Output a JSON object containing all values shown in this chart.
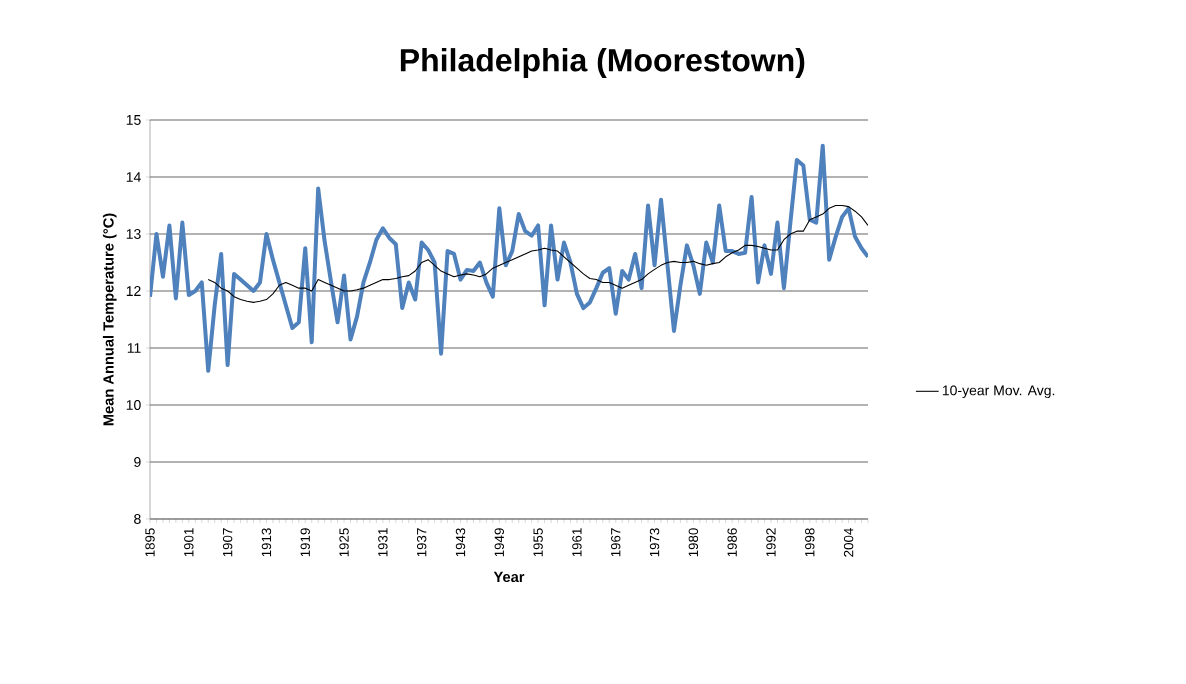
{
  "chart_data": {
    "type": "line",
    "title": "Philadelphia (Moorestown)",
    "xlabel": "Year",
    "ylabel": "Mean Annual Temperature (°C)",
    "categories": [
      "1895",
      null,
      null,
      null,
      null,
      null,
      "1901",
      null,
      null,
      null,
      null,
      null,
      "1907",
      null,
      null,
      null,
      null,
      null,
      "1913",
      null,
      null,
      null,
      null,
      null,
      "1919",
      null,
      null,
      null,
      null,
      null,
      "1925",
      null,
      null,
      null,
      null,
      null,
      "1931",
      null,
      null,
      null,
      null,
      null,
      "1937",
      null,
      null,
      null,
      null,
      null,
      "1943",
      null,
      null,
      null,
      null,
      null,
      "1949",
      null,
      null,
      null,
      null,
      null,
      "1955",
      null,
      null,
      null,
      null,
      null,
      "1961",
      null,
      null,
      null,
      null,
      null,
      "1967",
      null,
      null,
      null,
      null,
      null,
      "1973",
      null,
      null,
      null,
      null,
      null,
      "1980",
      null,
      null,
      null,
      null,
      null,
      "1986",
      null,
      null,
      null,
      null,
      null,
      "1992",
      null,
      null,
      null,
      null,
      null,
      "1998",
      null,
      null,
      null,
      null,
      null,
      "2004",
      null,
      null,
      null
    ],
    "series": [
      {
        "color": "#4f81bd",
        "values": [
          11.9,
          13.0,
          12.25,
          13.15,
          11.87,
          13.2,
          11.93,
          12.0,
          12.15,
          10.6,
          11.75,
          12.65,
          10.7,
          12.3,
          12.2,
          12.1,
          12.0,
          12.15,
          13.0,
          12.55,
          12.15,
          11.75,
          11.35,
          11.45,
          12.75,
          11.1,
          13.8,
          12.87,
          12.15,
          11.45,
          12.27,
          11.15,
          11.55,
          12.15,
          12.5,
          12.9,
          13.1,
          12.93,
          12.82,
          11.7,
          12.15,
          11.85,
          12.85,
          12.72,
          12.5,
          10.9,
          12.7,
          12.65,
          12.2,
          12.37,
          12.35,
          12.5,
          12.15,
          11.9,
          13.45,
          12.45,
          12.7,
          13.35,
          13.05,
          12.97,
          13.15,
          11.75,
          13.15,
          12.2,
          12.85,
          12.5,
          11.95,
          11.7,
          11.8,
          12.05,
          12.32,
          12.4,
          11.6,
          12.35,
          12.2,
          12.65,
          12.05,
          13.5,
          12.45,
          13.6,
          12.45,
          11.3,
          12.1,
          12.8,
          12.45,
          11.95,
          12.85,
          12.5,
          13.5,
          12.7,
          12.7,
          12.65,
          12.67,
          13.65,
          12.15,
          12.8,
          12.3,
          13.2,
          12.05,
          13.2,
          14.3,
          14.2,
          13.25,
          13.2,
          14.55,
          12.55,
          12.95,
          13.3,
          13.45,
          12.95,
          12.75,
          12.6
        ]
      },
      {
        "name": "10-year Mov. Avg.",
        "color": "#000000",
        "values": [
          null,
          null,
          null,
          null,
          null,
          null,
          null,
          null,
          null,
          12.2,
          12.15,
          12.05,
          12.0,
          11.9,
          11.85,
          11.82,
          11.8,
          11.82,
          11.85,
          11.95,
          12.1,
          12.15,
          12.1,
          12.05,
          12.05,
          12.0,
          12.2,
          12.15,
          12.1,
          12.05,
          12.0,
          12.0,
          12.02,
          12.05,
          12.1,
          12.15,
          12.2,
          12.2,
          12.22,
          12.25,
          12.27,
          12.35,
          12.5,
          12.55,
          12.45,
          12.35,
          12.3,
          12.25,
          12.28,
          12.3,
          12.28,
          12.25,
          12.3,
          12.4,
          12.45,
          12.5,
          12.55,
          12.6,
          12.65,
          12.7,
          12.72,
          12.75,
          12.72,
          12.7,
          12.6,
          12.5,
          12.4,
          12.3,
          12.22,
          12.2,
          12.15,
          12.15,
          12.1,
          12.05,
          12.1,
          12.15,
          12.2,
          12.3,
          12.38,
          12.45,
          12.5,
          12.52,
          12.5,
          12.5,
          12.52,
          12.48,
          12.45,
          12.48,
          12.5,
          12.6,
          12.67,
          12.72,
          12.8,
          12.8,
          12.78,
          12.75,
          12.72,
          12.72,
          12.9,
          13.0,
          13.05,
          13.05,
          13.25,
          13.3,
          13.35,
          13.45,
          13.5,
          13.5,
          13.48,
          13.4,
          13.3,
          13.15
        ]
      }
    ],
    "ylim": [
      8,
      15
    ],
    "yticks": [
      8,
      9,
      10,
      11,
      12,
      13,
      14,
      15
    ],
    "grid": "y",
    "legend": "right",
    "marker": "none"
  }
}
